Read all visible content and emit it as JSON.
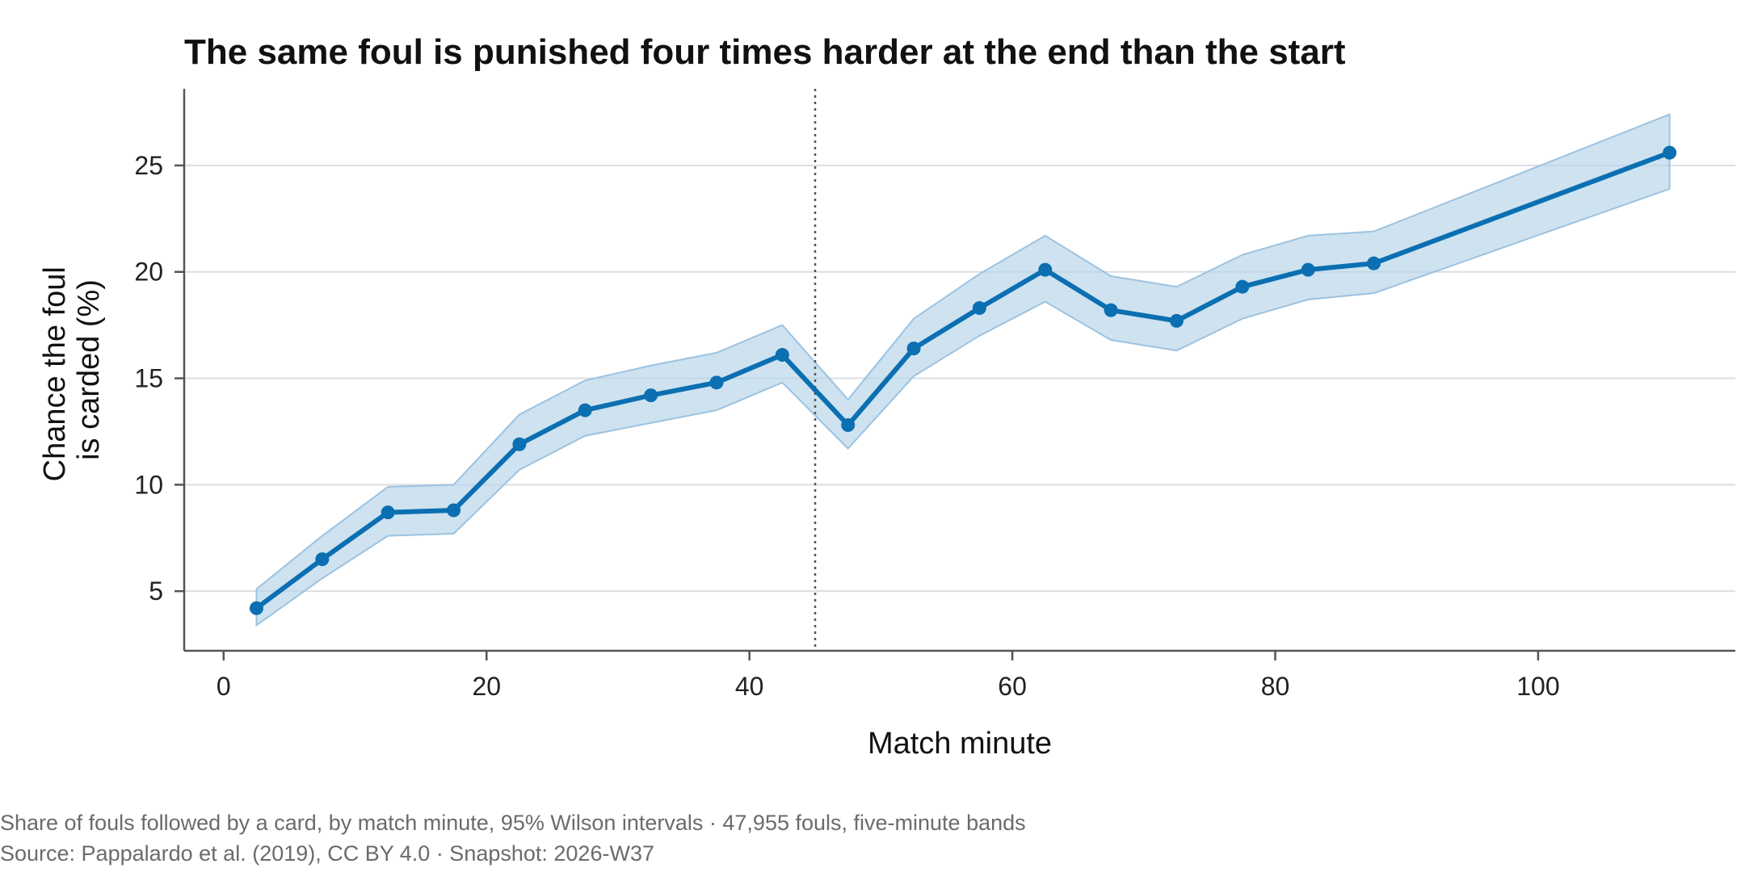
{
  "chart_data": {
    "type": "line",
    "title": "The same foul is punished four times harder at the end than the start",
    "xlabel": "Match minute",
    "ylabel_lines": [
      "Chance the foul",
      "is carded (%)"
    ],
    "xlim": [
      -3,
      115
    ],
    "ylim": [
      2.2,
      28.6
    ],
    "x_ticks": [
      0,
      20,
      40,
      60,
      80,
      100
    ],
    "y_ticks": [
      5,
      10,
      15,
      20,
      25
    ],
    "grid": "horizontal",
    "reference_line_x": 45,
    "series": [
      {
        "x": [
          2.5,
          7.5,
          12.5,
          17.5,
          22.5,
          27.5,
          32.5,
          37.5,
          42.5,
          47.5,
          52.5,
          57.5,
          62.5,
          67.5,
          72.5,
          77.5,
          82.5,
          87.5,
          110
        ],
        "values": [
          4.2,
          6.5,
          8.7,
          8.8,
          11.9,
          13.5,
          14.2,
          14.8,
          16.1,
          12.8,
          16.4,
          18.3,
          20.1,
          18.2,
          17.7,
          19.3,
          20.1,
          20.4,
          25.6
        ],
        "lower": [
          3.4,
          5.6,
          7.6,
          7.7,
          10.7,
          12.3,
          12.9,
          13.5,
          14.8,
          11.7,
          15.1,
          17.0,
          18.6,
          16.8,
          16.3,
          17.8,
          18.7,
          19.0,
          23.9
        ],
        "upper": [
          5.1,
          7.6,
          9.9,
          10.0,
          13.3,
          14.9,
          15.6,
          16.2,
          17.5,
          14.0,
          17.8,
          19.9,
          21.7,
          19.8,
          19.3,
          20.8,
          21.7,
          21.9,
          27.4
        ]
      }
    ]
  },
  "colors": {
    "line": "#0b6fb1",
    "band": "#b9d5ea",
    "band_edge": "#9cc3e1",
    "grid": "#dadde3",
    "axis": "#555555",
    "reference": "#555555"
  },
  "footer": {
    "line1": "Share of fouls followed by a card, by match minute, 95% Wilson intervals  ·  47,955 fouls, five-minute bands",
    "line2": "Source: Pappalardo et al. (2019), CC BY 4.0  ·  Snapshot: 2026-W37"
  }
}
